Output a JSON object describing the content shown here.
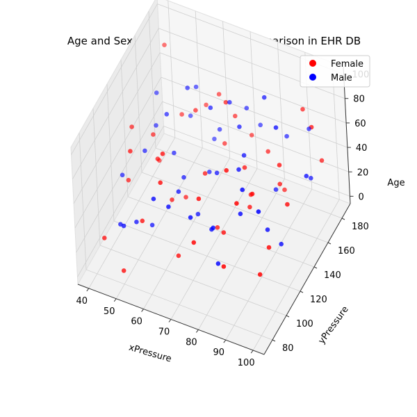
{
  "chart_data": {
    "type": "scatter3d",
    "title": "Age and Sex-wise Blood Pressure comparison in EHR DB",
    "xlabel": "xPressure",
    "ylabel": "yPressure",
    "zlabel": "Age",
    "xlim": [
      36,
      104
    ],
    "ylim": [
      68,
      192
    ],
    "zlim": [
      -6,
      106
    ],
    "xticks": [
      "40",
      "50",
      "60",
      "70",
      "80",
      "90",
      "100"
    ],
    "xtick_values": [
      40,
      50,
      60,
      70,
      80,
      90,
      100
    ],
    "yticks": [
      "80",
      "100",
      "120",
      "140",
      "160",
      "180"
    ],
    "ytick_values": [
      80,
      100,
      120,
      140,
      160,
      180
    ],
    "zticks": [
      "0",
      "20",
      "40",
      "60",
      "80",
      "100"
    ],
    "ztick_values": [
      0,
      20,
      40,
      60,
      80,
      100
    ],
    "grid": true,
    "legend": "top-right",
    "series": [
      {
        "name": "Female",
        "color": "#ff0000",
        "points": [
          [
            42,
            85,
            20
          ],
          [
            45,
            110,
            45
          ],
          [
            48,
            135,
            60
          ],
          [
            52,
            160,
            55
          ],
          [
            44,
            170,
            95
          ],
          [
            55,
            90,
            40
          ],
          [
            58,
            120,
            30
          ],
          [
            60,
            150,
            75
          ],
          [
            62,
            175,
            65
          ],
          [
            65,
            100,
            10
          ],
          [
            50,
            80,
            5
          ],
          [
            68,
            130,
            50
          ],
          [
            70,
            155,
            85
          ],
          [
            72,
            180,
            35
          ],
          [
            75,
            95,
            70
          ],
          [
            78,
            115,
            25
          ],
          [
            80,
            140,
            55
          ],
          [
            82,
            165,
            45
          ],
          [
            85,
            88,
            30
          ],
          [
            88,
            120,
            60
          ],
          [
            90,
            150,
            40
          ],
          [
            92,
            178,
            75
          ],
          [
            95,
            100,
            20
          ],
          [
            98,
            130,
            50
          ],
          [
            100,
            160,
            85
          ],
          [
            47,
            145,
            28
          ],
          [
            57,
            175,
            52
          ],
          [
            63,
            88,
            80
          ],
          [
            73,
            125,
            15
          ],
          [
            83,
            105,
            90
          ],
          [
            93,
            140,
            68
          ],
          [
            66,
            165,
            38
          ],
          [
            54,
            118,
            62
          ],
          [
            86,
            170,
            12
          ],
          [
            76,
            82,
            48
          ],
          [
            96,
            110,
            33
          ],
          [
            43,
            125,
            72
          ],
          [
            61,
            100,
            90
          ],
          [
            79,
            150,
            22
          ],
          [
            89,
            95,
            78
          ],
          [
            99,
            175,
            42
          ],
          [
            69,
            170,
            58
          ],
          [
            59,
            135,
            18
          ],
          [
            49,
            100,
            82
          ],
          [
            84,
            130,
            36
          ]
        ]
      },
      {
        "name": "Male",
        "color": "#0000ff",
        "points": [
          [
            40,
            120,
            35
          ],
          [
            45,
            150,
            50
          ],
          [
            50,
            100,
            25
          ],
          [
            55,
            170,
            70
          ],
          [
            60,
            130,
            40
          ],
          [
            65,
            90,
            60
          ],
          [
            70,
            160,
            80
          ],
          [
            75,
            110,
            30
          ],
          [
            80,
            140,
            65
          ],
          [
            85,
            180,
            45
          ],
          [
            90,
            100,
            85
          ],
          [
            95,
            130,
            15
          ],
          [
            100,
            150,
            55
          ],
          [
            48,
            90,
            30
          ],
          [
            52,
            140,
            75
          ],
          [
            58,
            180,
            20
          ],
          [
            62,
            115,
            45
          ],
          [
            67,
            145,
            88
          ],
          [
            72,
            175,
            62
          ],
          [
            77,
            105,
            38
          ],
          [
            82,
            125,
            70
          ],
          [
            87,
            155,
            28
          ],
          [
            92,
            185,
            52
          ],
          [
            97,
            95,
            78
          ],
          [
            43,
            160,
            65
          ],
          [
            53,
            110,
            15
          ],
          [
            63,
            170,
            42
          ],
          [
            73,
            90,
            58
          ],
          [
            83,
            160,
            95
          ],
          [
            93,
            120,
            35
          ],
          [
            46,
            130,
            50
          ],
          [
            56,
            155,
            85
          ],
          [
            66,
            125,
            20
          ],
          [
            76,
            150,
            75
          ],
          [
            86,
            110,
            52
          ],
          [
            96,
            170,
            30
          ],
          [
            51,
            175,
            38
          ],
          [
            61,
            85,
            68
          ],
          [
            71,
            135,
            48
          ],
          [
            81,
            95,
            22
          ],
          [
            91,
            145,
            92
          ],
          [
            74,
            185,
            40
          ],
          [
            64,
            150,
            28
          ],
          [
            54,
            140,
            45
          ],
          [
            44,
            100,
            18
          ]
        ]
      }
    ]
  }
}
